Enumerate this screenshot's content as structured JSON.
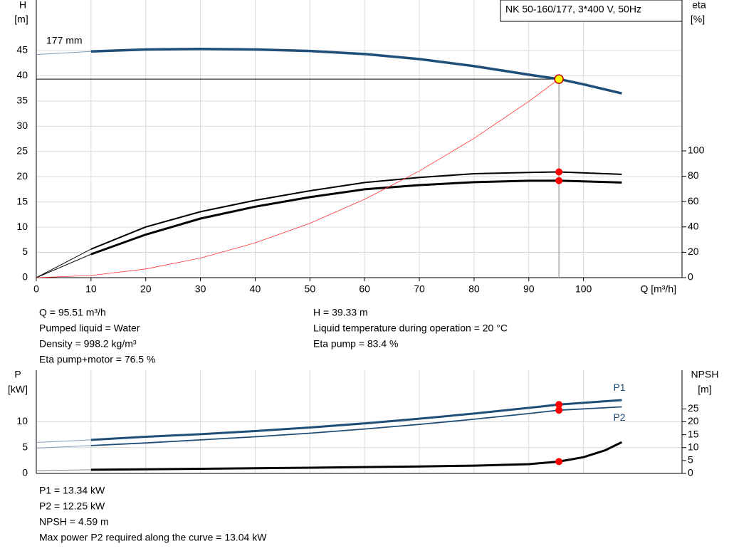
{
  "chart_data": [
    {
      "type": "line",
      "title": "NK 50-160/177, 3*400 V, 50Hz",
      "y_label": "H",
      "y_unit": "[m]",
      "y2_label": "eta",
      "y2_unit": "[%]",
      "x_label": "Q [m³/h]",
      "xlim": [
        0,
        118
      ],
      "xticks": [
        0,
        10,
        20,
        30,
        40,
        50,
        60,
        70,
        80,
        90,
        100
      ],
      "ylim": [
        0,
        55
      ],
      "yticks": [
        0,
        5,
        10,
        15,
        20,
        25,
        30,
        35,
        40,
        45
      ],
      "y2lim": [
        0,
        219
      ],
      "y2ticks": [
        0,
        20,
        40,
        60,
        80,
        100
      ],
      "grid": true,
      "series": [
        {
          "name": "177 mm",
          "color": "#1f4e79",
          "width": 3.5,
          "x": [
            10,
            20,
            30,
            40,
            50,
            60,
            70,
            80,
            90,
            95.51,
            100,
            107
          ],
          "values": [
            44.8,
            45.2,
            45.3,
            45.2,
            44.9,
            44.3,
            43.3,
            41.9,
            40.2,
            39.33,
            38.3,
            36.5
          ]
        },
        {
          "color": "#7f9bb8",
          "width": 1,
          "x": [
            0,
            10
          ],
          "values": [
            44.2,
            44.8
          ]
        },
        {
          "color": "#000000",
          "width": 2,
          "axis": "y2",
          "x": [
            10,
            20,
            30,
            40,
            50,
            60,
            70,
            80,
            90,
            95.51,
            107
          ],
          "values": [
            22.5,
            40,
            52,
            61,
            68.5,
            75,
            79,
            82,
            83,
            83.4,
            81.5
          ]
        },
        {
          "color": "#000000",
          "width": 1,
          "axis": "y2",
          "x": [
            0,
            10
          ],
          "values": [
            0,
            22.5
          ]
        },
        {
          "color": "#000000",
          "width": 3,
          "axis": "y2",
          "x": [
            10,
            20,
            30,
            40,
            50,
            60,
            70,
            80,
            90,
            95.51,
            107
          ],
          "values": [
            18.5,
            34,
            46.6,
            56,
            63.5,
            69.7,
            73,
            75.3,
            76.4,
            76.5,
            75
          ]
        },
        {
          "color": "#000000",
          "width": 1,
          "axis": "y2",
          "x": [
            0,
            10
          ],
          "values": [
            0,
            18.5
          ]
        },
        {
          "color": "#ff3030",
          "width": 0.8,
          "x": [
            0,
            10,
            20,
            30,
            40,
            50,
            60,
            70,
            80,
            90,
            95.51
          ],
          "values": [
            0,
            0.43,
            1.72,
            3.88,
            6.9,
            10.78,
            15.52,
            21.13,
            27.6,
            34.92,
            39.33
          ]
        }
      ],
      "markers": [
        {
          "x": 95.51,
          "y": 39.33,
          "color": "#ffff00",
          "guides": true
        },
        {
          "x": 95.51,
          "y": 83.4,
          "color": "#ff0000",
          "axis": "y2"
        },
        {
          "x": 95.51,
          "y": 76.5,
          "color": "#ff0000",
          "axis": "y2"
        }
      ],
      "info_left": [
        "Q = 95.51 m³/h",
        "Pumped liquid = Water",
        "Density = 998.2 kg/m³",
        "Eta pump+motor = 76.5 %"
      ],
      "info_right": [
        "H = 39.33 m",
        "Liquid temperature during operation = 20 °C",
        "Eta pump = 83.4 %"
      ]
    },
    {
      "type": "line",
      "y_label": "P",
      "y_unit": "[kW]",
      "y2_label": "NPSH",
      "y2_unit": "[m]",
      "xlim": [
        0,
        118
      ],
      "xticks": [
        0,
        10,
        20,
        30,
        40,
        50,
        60,
        70,
        80,
        90,
        100
      ],
      "ylim": [
        0,
        20
      ],
      "yticks": [
        0,
        5,
        10
      ],
      "y2lim": [
        0,
        40
      ],
      "y2ticks": [
        0,
        5,
        10,
        15,
        20,
        25
      ],
      "grid": true,
      "series": [
        {
          "name": "P1",
          "color": "#1f4e79",
          "width": 3,
          "x": [
            10,
            20,
            30,
            40,
            50,
            60,
            70,
            80,
            90,
            95.51,
            107
          ],
          "values": [
            6.5,
            7.1,
            7.6,
            8.2,
            8.9,
            9.7,
            10.6,
            11.6,
            12.7,
            13.34,
            14.2
          ]
        },
        {
          "color": "#7f9bb8",
          "width": 1,
          "x": [
            0,
            10
          ],
          "values": [
            6.0,
            6.5
          ]
        },
        {
          "name": "P2",
          "color": "#1f4e79",
          "width": 1.8,
          "x": [
            10,
            20,
            30,
            40,
            50,
            60,
            70,
            80,
            90,
            95.51,
            107
          ],
          "values": [
            5.4,
            5.9,
            6.5,
            7.1,
            7.8,
            8.6,
            9.5,
            10.5,
            11.6,
            12.25,
            12.9
          ]
        },
        {
          "color": "#7f9bb8",
          "width": 1,
          "x": [
            0,
            10
          ],
          "values": [
            4.9,
            5.4
          ]
        },
        {
          "color": "#000000",
          "width": 3,
          "axis": "y2",
          "x": [
            10,
            30,
            50,
            70,
            80,
            90,
            95.51,
            100,
            104,
            107
          ],
          "values": [
            1.4,
            1.8,
            2.2,
            2.7,
            3.0,
            3.6,
            4.59,
            6.3,
            9.0,
            12.1
          ]
        },
        {
          "color": "#888888",
          "width": 1,
          "axis": "y2",
          "x": [
            0,
            10
          ],
          "values": [
            1.1,
            1.4
          ]
        }
      ],
      "markers": [
        {
          "x": 95.51,
          "y": 13.34,
          "color": "#ff0000"
        },
        {
          "x": 95.51,
          "y": 12.25,
          "color": "#ff0000"
        },
        {
          "x": 95.51,
          "y": 4.59,
          "color": "#ff0000",
          "axis": "y2"
        }
      ],
      "info_left": [
        "P1 = 13.34 kW",
        "P2 = 12.25 kW",
        "NPSH = 4.59 m",
        "Max power P2 required along the curve = 13.04 kW"
      ]
    }
  ]
}
